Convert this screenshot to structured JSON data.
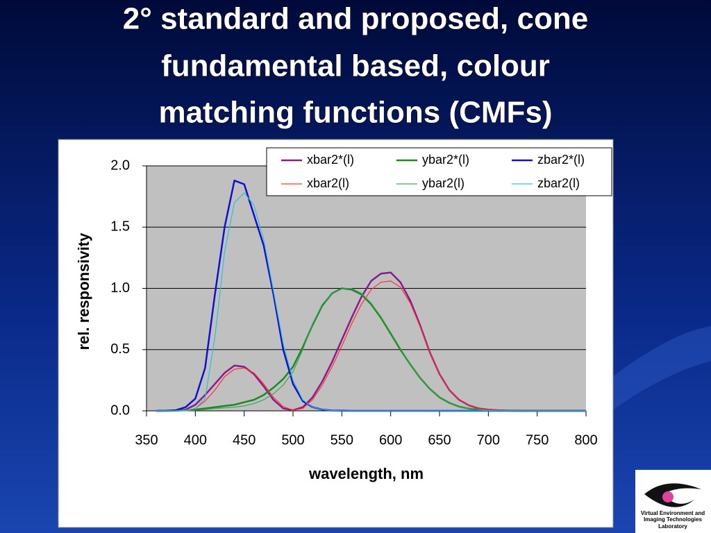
{
  "slide": {
    "title_lines": [
      "2° standard and proposed, cone",
      "fundamental based, colour",
      "matching functions (CMFs)"
    ],
    "logo_lines": [
      "Virtual Environment and",
      "Imaging Technologies",
      "Laboratory"
    ]
  },
  "chart_data": {
    "type": "line",
    "x_label": "wavelength, nm",
    "y_label": "rel. responsivity",
    "x": [
      360,
      370,
      380,
      390,
      400,
      410,
      420,
      430,
      440,
      450,
      460,
      470,
      480,
      490,
      500,
      510,
      520,
      530,
      540,
      550,
      560,
      570,
      580,
      590,
      600,
      610,
      620,
      630,
      640,
      650,
      660,
      670,
      680,
      690,
      700,
      710,
      720,
      730,
      740,
      750,
      760,
      770,
      780,
      790,
      800
    ],
    "series": [
      {
        "name": "xbar2*(l)",
        "color": "#8b1a8b",
        "width": 2.5,
        "values": [
          0,
          0,
          0.001,
          0.01,
          0.05,
          0.13,
          0.22,
          0.31,
          0.37,
          0.36,
          0.3,
          0.2,
          0.09,
          0.02,
          0.005,
          0.03,
          0.11,
          0.24,
          0.4,
          0.58,
          0.76,
          0.93,
          1.06,
          1.12,
          1.13,
          1.05,
          0.9,
          0.7,
          0.48,
          0.3,
          0.17,
          0.09,
          0.045,
          0.02,
          0.01,
          0.005,
          0.002,
          0.001,
          0,
          0,
          0,
          0,
          0,
          0,
          0
        ]
      },
      {
        "name": "ybar2*(l)",
        "color": "#1a8a1a",
        "width": 2.5,
        "values": [
          0,
          0,
          0.001,
          0.004,
          0.01,
          0.02,
          0.03,
          0.04,
          0.05,
          0.07,
          0.09,
          0.13,
          0.19,
          0.26,
          0.36,
          0.52,
          0.7,
          0.86,
          0.96,
          1.0,
          0.99,
          0.95,
          0.87,
          0.76,
          0.63,
          0.5,
          0.38,
          0.27,
          0.18,
          0.11,
          0.065,
          0.035,
          0.018,
          0.009,
          0.004,
          0.002,
          0.001,
          0,
          0,
          0,
          0,
          0,
          0,
          0,
          0
        ]
      },
      {
        "name": "zbar2*(l)",
        "color": "#1010d0",
        "width": 2.5,
        "values": [
          0,
          0.001,
          0.005,
          0.03,
          0.1,
          0.35,
          0.95,
          1.5,
          1.88,
          1.85,
          1.6,
          1.35,
          0.95,
          0.5,
          0.22,
          0.08,
          0.03,
          0.01,
          0.003,
          0.001,
          0,
          0,
          0,
          0,
          0,
          0,
          0,
          0,
          0,
          0,
          0,
          0,
          0,
          0,
          0,
          0,
          0,
          0,
          0,
          0,
          0,
          0,
          0,
          0,
          0
        ]
      },
      {
        "name": "xbar2(l)",
        "color": "#ff3030",
        "width": 1.2,
        "values": [
          0,
          0,
          0,
          0.003,
          0.02,
          0.08,
          0.17,
          0.28,
          0.34,
          0.35,
          0.31,
          0.22,
          0.11,
          0.035,
          0.005,
          0.02,
          0.09,
          0.21,
          0.36,
          0.53,
          0.71,
          0.87,
          0.99,
          1.05,
          1.06,
          1.01,
          0.88,
          0.69,
          0.48,
          0.3,
          0.17,
          0.09,
          0.045,
          0.02,
          0.01,
          0.005,
          0.002,
          0.001,
          0,
          0,
          0,
          0,
          0,
          0,
          0
        ]
      },
      {
        "name": "ybar2(l)",
        "color": "#40a060",
        "width": 1.2,
        "values": [
          0,
          0,
          0,
          0.001,
          0.004,
          0.01,
          0.02,
          0.025,
          0.03,
          0.04,
          0.06,
          0.09,
          0.14,
          0.21,
          0.32,
          0.5,
          0.71,
          0.87,
          0.96,
          0.995,
          1.0,
          0.96,
          0.88,
          0.77,
          0.64,
          0.51,
          0.38,
          0.27,
          0.18,
          0.11,
          0.065,
          0.035,
          0.018,
          0.009,
          0.004,
          0.002,
          0.001,
          0,
          0,
          0,
          0,
          0,
          0,
          0,
          0
        ]
      },
      {
        "name": "zbar2(l)",
        "color": "#30c0d0",
        "width": 1.2,
        "values": [
          0,
          0,
          0.001,
          0.005,
          0.02,
          0.1,
          0.6,
          1.3,
          1.7,
          1.78,
          1.68,
          1.4,
          0.98,
          0.55,
          0.25,
          0.09,
          0.03,
          0.01,
          0.003,
          0.001,
          0,
          0,
          0,
          0,
          0,
          0,
          0,
          0,
          0,
          0,
          0,
          0,
          0,
          0,
          0,
          0,
          0,
          0,
          0,
          0,
          0,
          0,
          0,
          0,
          0
        ]
      }
    ],
    "xlim": [
      350,
      800
    ],
    "xticks": [
      350,
      400,
      450,
      500,
      550,
      600,
      650,
      700,
      750,
      800
    ],
    "ylim": [
      0,
      2
    ],
    "yticks": [
      {
        "value": 0,
        "label": "0.0"
      },
      {
        "value": 0.5,
        "label": "0.5"
      },
      {
        "value": 1,
        "label": "1.0"
      },
      {
        "value": 1.5,
        "label": "1.5"
      },
      {
        "value": 2,
        "label": "2.0"
      }
    ],
    "grid": true,
    "legend": "top-right"
  }
}
